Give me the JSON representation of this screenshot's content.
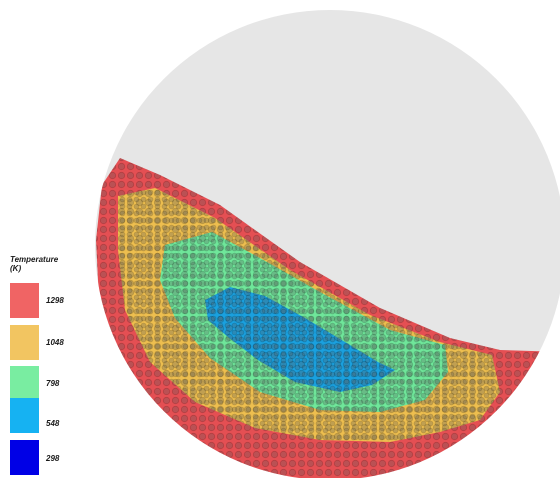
{
  "colors": {
    "empty_drum": "#e6e6e6",
    "outer_layer": "#e44f53",
    "second_layer": "#edbe4f",
    "third_layer": "#6fe69a",
    "core": "#1aa0de"
  },
  "legend": {
    "title_line1": "Temperature",
    "title_line2": "(K)",
    "items": [
      {
        "label": "1298",
        "color": "#f06464"
      },
      {
        "label": "1048",
        "color": "#f2c561"
      },
      {
        "label": "798",
        "color": "#79eda1"
      },
      {
        "label": "548",
        "color": "#16b2f2"
      },
      {
        "label": "298",
        "color": "#0000e6"
      }
    ]
  }
}
